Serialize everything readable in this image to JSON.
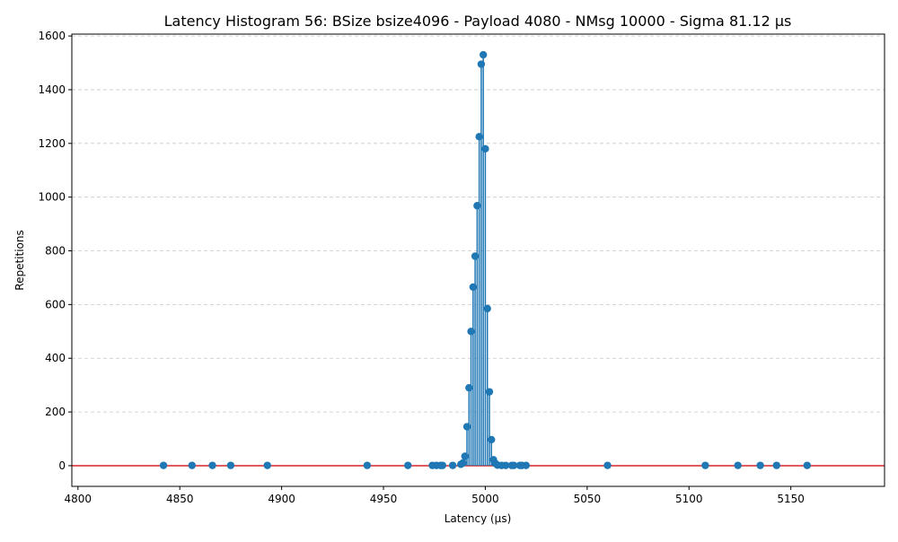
{
  "chart_data": {
    "type": "stem",
    "title": "Latency Histogram 56: BSize bsize4096 - Payload 4080 - NMsg 10000 - Sigma 81.12 µs",
    "xlabel": "Latency (µs)",
    "ylabel": "Repetitions",
    "xlim": [
      4797,
      5196
    ],
    "ylim": [
      -77,
      1607
    ],
    "xticks": [
      4800,
      4850,
      4900,
      4950,
      5000,
      5050,
      5100,
      5150
    ],
    "yticks": [
      0,
      200,
      400,
      600,
      800,
      1000,
      1200,
      1400,
      1600
    ],
    "grid": "y-dashed",
    "baseline": 0,
    "colors": {
      "stem": "#1f77b4",
      "baseline": "#d62728",
      "grid": "#c8c8c8"
    },
    "x": [
      4842,
      4856,
      4866,
      4875,
      4893,
      4942,
      4962,
      4974,
      4976,
      4978,
      4979,
      4984,
      4988,
      4989,
      4990,
      4991,
      4992,
      4993,
      4994,
      4995,
      4996,
      4997,
      4998,
      4999,
      5000,
      5001,
      5002,
      5003,
      5004,
      5005,
      5006,
      5008,
      5010,
      5013,
      5014,
      5017,
      5018,
      5020,
      5060,
      5108,
      5124,
      5135,
      5143,
      5158
    ],
    "y": [
      1,
      1,
      1,
      1,
      1,
      1,
      1,
      1,
      1,
      1,
      1,
      1,
      5,
      10,
      35,
      145,
      290,
      500,
      665,
      780,
      968,
      1225,
      1495,
      1530,
      1180,
      585,
      275,
      97,
      22,
      8,
      2,
      1,
      1,
      1,
      1,
      1,
      1,
      1,
      1,
      1,
      1,
      1,
      1,
      1
    ]
  }
}
